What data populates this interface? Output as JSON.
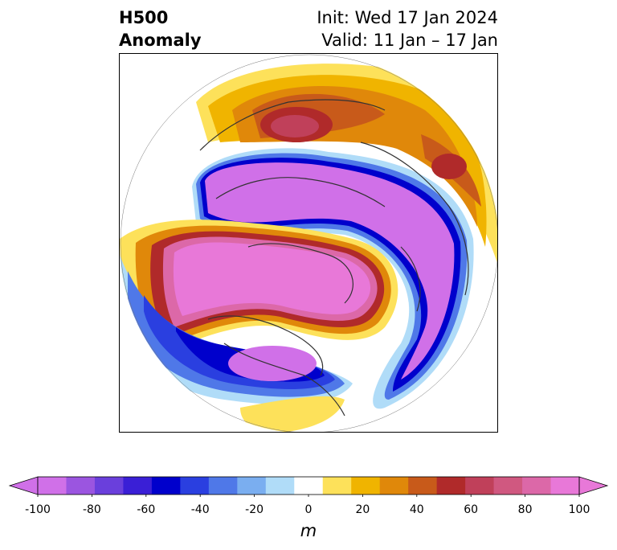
{
  "title": {
    "left_line1": "H500",
    "left_line2": "Anomaly",
    "right_line1": "Init: Wed 17 Jan 2024",
    "right_line2": "Valid: 11 Jan – 17 Jan"
  },
  "colorbar": {
    "unit": "m",
    "ticks": [
      "-100",
      "-80",
      "-60",
      "-40",
      "-20",
      "0",
      "20",
      "40",
      "60",
      "80",
      "100"
    ],
    "levels": [
      -100,
      -90,
      -80,
      -70,
      -60,
      -50,
      -40,
      -30,
      -20,
      -10,
      10,
      20,
      30,
      40,
      50,
      60,
      70,
      80,
      90,
      100
    ],
    "colors": [
      "#d070e8",
      "#9b55e0",
      "#6a3fdc",
      "#3a1fd6",
      "#0000cc",
      "#2a3fe0",
      "#4f78e8",
      "#7aaef0",
      "#b0dcf8",
      "#ffffff",
      "#fde15a",
      "#f0b400",
      "#e0880a",
      "#c85a1a",
      "#b02a2a",
      "#c0405a",
      "#d05880",
      "#dc68a8",
      "#e878d8"
    ],
    "under_color": "#d070e8",
    "over_color": "#e878d8"
  }
}
